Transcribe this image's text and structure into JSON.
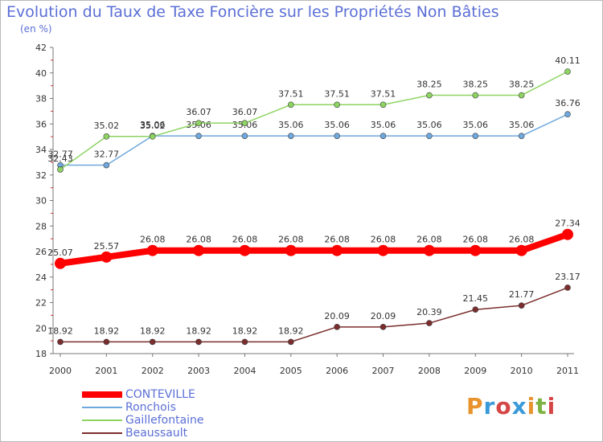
{
  "title": "Evolution du Taux de Taxe Foncière sur les Propriétés Non Bâties",
  "subtitle": "(en %)",
  "logo": {
    "text": "Proxiti",
    "colors": [
      "#e8932d",
      "#3a9ad9",
      "#d64545",
      "#3a9ad9",
      "#e8932d",
      "#7cb342",
      "#d64545"
    ]
  },
  "chart_data": {
    "type": "line",
    "title": "Evolution du Taux de Taxe Foncière sur les Propriétés Non Bâties",
    "ylabel": "(en %)",
    "xlabel": "",
    "x": [
      "2000",
      "2001",
      "2002",
      "2003",
      "2004",
      "2005",
      "2006",
      "2007",
      "2008",
      "2009",
      "2010",
      "2011"
    ],
    "ylim": [
      18,
      42
    ],
    "yticks": [
      "18",
      "20",
      "22",
      "24",
      "26",
      "28",
      "30",
      "32",
      "34",
      "36",
      "38",
      "40",
      "42"
    ],
    "grid": false,
    "legend_position": "bottom-left",
    "series": [
      {
        "name": "CONTEVILLE",
        "color": "#ff0000",
        "emphasis": "thick",
        "values": [
          25.07,
          25.57,
          26.08,
          26.08,
          26.08,
          26.08,
          26.08,
          26.08,
          26.08,
          26.08,
          26.08,
          27.34
        ],
        "labels": [
          "25.07",
          "25.57",
          "26.08",
          "26.08",
          "26.08",
          "26.08",
          "26.08",
          "26.08",
          "26.08",
          "26.08",
          "26.08",
          "27.34"
        ]
      },
      {
        "name": "Ronchois",
        "color": "#6fa8dc",
        "values": [
          32.77,
          32.77,
          35.06,
          35.06,
          35.06,
          35.06,
          35.06,
          35.06,
          35.06,
          35.06,
          35.06,
          36.76
        ],
        "labels": [
          "32.77",
          "32.77",
          "35.06",
          "35.06",
          "35.06",
          "35.06",
          "35.06",
          "35.06",
          "35.06",
          "35.06",
          "35.06",
          "36.76"
        ]
      },
      {
        "name": "Gaillefontaine",
        "color": "#8ed462",
        "values": [
          32.43,
          35.02,
          35.02,
          36.07,
          36.07,
          37.51,
          37.51,
          37.51,
          38.25,
          38.25,
          38.25,
          40.11
        ],
        "labels": [
          "32.43",
          "35.02",
          "35.02",
          "36.07",
          "36.07",
          "37.51",
          "37.51",
          "37.51",
          "38.25",
          "38.25",
          "38.25",
          "40.11"
        ]
      },
      {
        "name": "Beaussault",
        "color": "#7b2d2d",
        "values": [
          18.92,
          18.92,
          18.92,
          18.92,
          18.92,
          18.92,
          20.09,
          20.09,
          20.39,
          21.45,
          21.77,
          23.17
        ],
        "labels": [
          "18.92",
          "18.92",
          "18.92",
          "18.92",
          "18.92",
          "18.92",
          "20.09",
          "20.09",
          "20.39",
          "21.45",
          "21.77",
          "23.17"
        ]
      }
    ]
  }
}
